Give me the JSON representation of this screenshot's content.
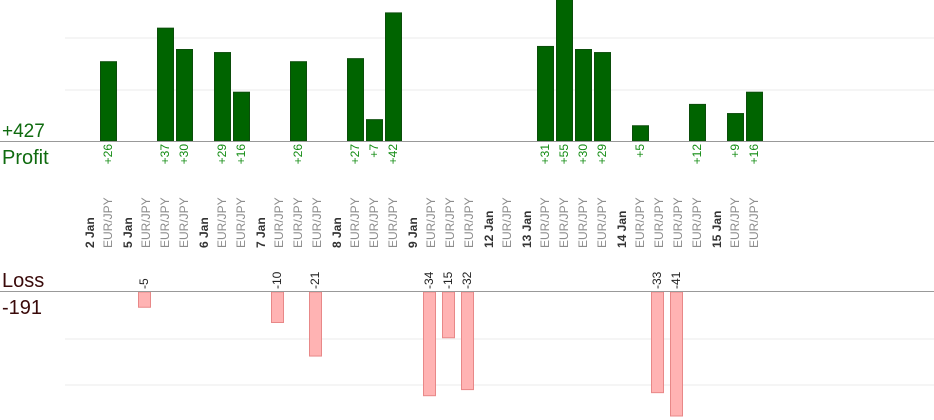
{
  "chart_data": {
    "type": "bar",
    "profit_total": "+427",
    "profit_title": "Profit",
    "loss_title": "Loss",
    "loss_total": "-191",
    "colors": {
      "profit": "#006400",
      "loss": "#ffb3b3",
      "profit_text": "#138c13"
    },
    "days": [
      {
        "date": "2 Jan",
        "trades": [
          {
            "pair": "EUR/JPY",
            "value": 26,
            "label": "+26"
          }
        ]
      },
      {
        "date": "5 Jan",
        "trades": [
          {
            "pair": "EUR/JPY",
            "value": -5,
            "label": "-5"
          },
          {
            "pair": "EUR/JPY",
            "value": 37,
            "label": "+37"
          },
          {
            "pair": "EUR/JPY",
            "value": 30,
            "label": "+30"
          }
        ]
      },
      {
        "date": "6 Jan",
        "trades": [
          {
            "pair": "EUR/JPY",
            "value": 29,
            "label": "+29"
          },
          {
            "pair": "EUR/JPY",
            "value": 16,
            "label": "+16"
          }
        ]
      },
      {
        "date": "7 Jan",
        "trades": [
          {
            "pair": "EUR/JPY",
            "value": -10,
            "label": "-10"
          },
          {
            "pair": "EUR/JPY",
            "value": 26,
            "label": "+26"
          },
          {
            "pair": "EUR/JPY",
            "value": -21,
            "label": "-21"
          }
        ]
      },
      {
        "date": "8 Jan",
        "trades": [
          {
            "pair": "EUR/JPY",
            "value": 27,
            "label": "+27"
          },
          {
            "pair": "EUR/JPY",
            "value": 7,
            "label": "+7"
          },
          {
            "pair": "EUR/JPY",
            "value": 42,
            "label": "+42"
          }
        ]
      },
      {
        "date": "9 Jan",
        "trades": [
          {
            "pair": "EUR/JPY",
            "value": -34,
            "label": "-34"
          },
          {
            "pair": "EUR/JPY",
            "value": -15,
            "label": "-15"
          },
          {
            "pair": "EUR/JPY",
            "value": -32,
            "label": "-32"
          }
        ]
      },
      {
        "date": "12 Jan",
        "trades": [
          {
            "pair": "EUR/JPY",
            "value": 0,
            "label": ""
          }
        ]
      },
      {
        "date": "13 Jan",
        "trades": [
          {
            "pair": "EUR/JPY",
            "value": 31,
            "label": "+31"
          },
          {
            "pair": "EUR/JPY",
            "value": 55,
            "label": "+55"
          },
          {
            "pair": "EUR/JPY",
            "value": 30,
            "label": "+30"
          },
          {
            "pair": "EUR/JPY",
            "value": 29,
            "label": "+29"
          }
        ]
      },
      {
        "date": "14 Jan",
        "trades": [
          {
            "pair": "EUR/JPY",
            "value": 5,
            "label": "+5"
          },
          {
            "pair": "EUR/JPY",
            "value": -33,
            "label": "-33"
          },
          {
            "pair": "EUR/JPY",
            "value": -41,
            "label": "-41"
          },
          {
            "pair": "EUR/JPY",
            "value": 12,
            "label": "+12"
          }
        ]
      },
      {
        "date": "15 Jan",
        "trades": [
          {
            "pair": "EUR/JPY",
            "value": 9,
            "label": "+9"
          },
          {
            "pair": "EUR/JPY",
            "value": 16,
            "label": "+16"
          }
        ]
      }
    ]
  }
}
